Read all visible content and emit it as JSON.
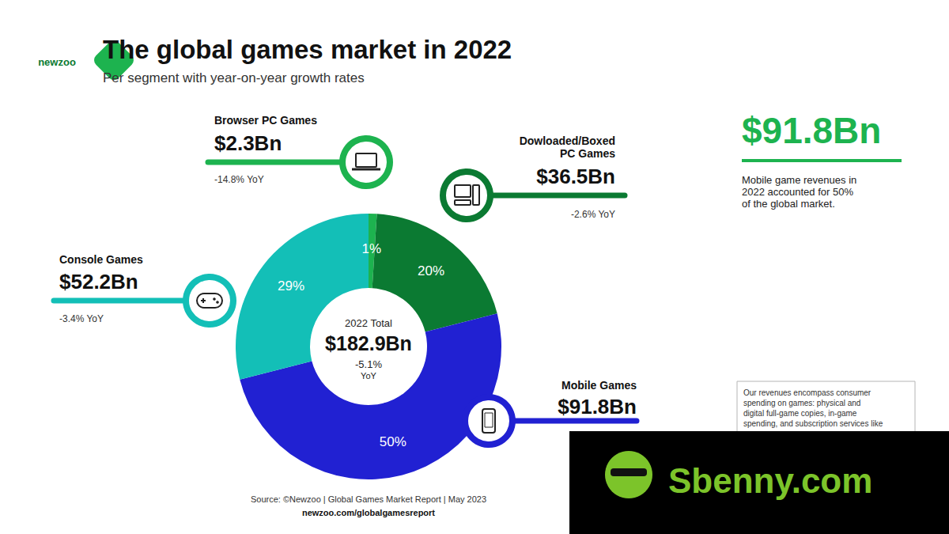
{
  "chart_data": {
    "type": "pie",
    "logo": "newzoo",
    "title": "The global games market in 2022",
    "subtitle": "Per segment with year-on-year growth rates",
    "categories": [
      "Browser PC Games",
      "Dowloaded/Boxed\nPC Games",
      "Mobile Games",
      "Console Games"
    ],
    "values": [
      1,
      20,
      50,
      29
    ],
    "value_labels": [
      "1%",
      "20%",
      "50%",
      "29%"
    ],
    "colors": [
      "#1db34f",
      "#0b7a32",
      "#2121d2",
      "#13bfb7"
    ],
    "data_labels": true,
    "segment_revenue_labels": [
      "$2.3Bn",
      "$36.5Bn",
      "$91.8Bn",
      "$52.2Bn"
    ],
    "segment_growth_labels": [
      "-14.8% YoY",
      "-2.6% YoY",
      null,
      "-3.4% YoY"
    ],
    "total_title": "2022 Total",
    "total_label": "$182.9Bn",
    "total_growth_label": "-5.1%",
    "total_growth_unit": "YoY",
    "highlight_label": "$91.8Bn",
    "highlight_text": "Mobile game revenues in\n2022 accounted for 50%\nof the global market.",
    "note": "Our revenues encompass consumer\nspending on games: physical and\ndigital full-game copies, in-game\nspending, and subscription services like",
    "source": "Source: ©Newzoo | Global Games Market Report | May 2023",
    "source_url": "newzoo.com/globalgamesreport",
    "watermark": "Sbenny.com"
  }
}
